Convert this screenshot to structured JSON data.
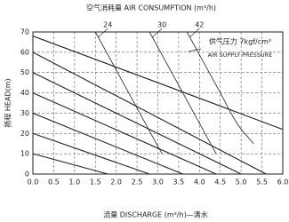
{
  "chart_data": {
    "type": "line",
    "title": "空气消耗量 AIR CONSUMPTION (m³/h)",
    "x_label": "流量 DISCHARGE (m³/h)—清水",
    "y_label": "扬程 HEAD(m)",
    "annotation": [
      "供气压力 7kgf/cm²",
      "AIR SUPPLY PRESSURE"
    ],
    "xlim": [
      0,
      6
    ],
    "ylim": [
      0,
      70
    ],
    "xticks": [
      {
        "value": 0,
        "label": "0.0"
      },
      0.5,
      {
        "value": 1,
        "label": "1.0"
      },
      1.5,
      {
        "value": 2,
        "label": "2.0"
      },
      2.5,
      {
        "value": 3,
        "label": "3.0"
      },
      3.5,
      {
        "value": 4,
        "label": "4.0"
      },
      4.5,
      {
        "value": 5,
        "label": "5.0"
      },
      5.5,
      {
        "value": 6,
        "label": "6.0"
      }
    ],
    "yticks": [
      0,
      10,
      20,
      30,
      40,
      50,
      60,
      70
    ],
    "grid": true,
    "color": "#222222",
    "series": [
      {
        "x": [
          0,
          6
        ],
        "values": [
          68,
          22
        ]
      },
      {
        "x": [
          0,
          5.6
        ],
        "values": [
          60,
          0
        ]
      },
      {
        "x": [
          0,
          5.0
        ],
        "values": [
          50,
          0
        ]
      },
      {
        "x": [
          0,
          4.4
        ],
        "values": [
          40,
          0
        ]
      },
      {
        "x": [
          0,
          3.6
        ],
        "values": [
          30,
          0
        ]
      },
      {
        "x": [
          0,
          2.8
        ],
        "values": [
          20,
          0
        ]
      },
      {
        "x": [
          0,
          1.8
        ],
        "values": [
          10,
          0
        ]
      },
      {
        "name": "24",
        "x": [
          1.5,
          1.9,
          2.3,
          2.7,
          3.1
        ],
        "values": [
          70,
          55,
          40,
          25,
          10
        ]
      },
      {
        "name": "30",
        "x": [
          2.8,
          3.2,
          3.6,
          4.0,
          4.4
        ],
        "values": [
          70,
          55,
          40,
          25,
          10
        ]
      },
      {
        "name": "42",
        "x": [
          3.7,
          4.1,
          4.5,
          4.9,
          5.3
        ],
        "values": [
          70,
          55,
          40,
          25,
          15
        ]
      }
    ]
  }
}
